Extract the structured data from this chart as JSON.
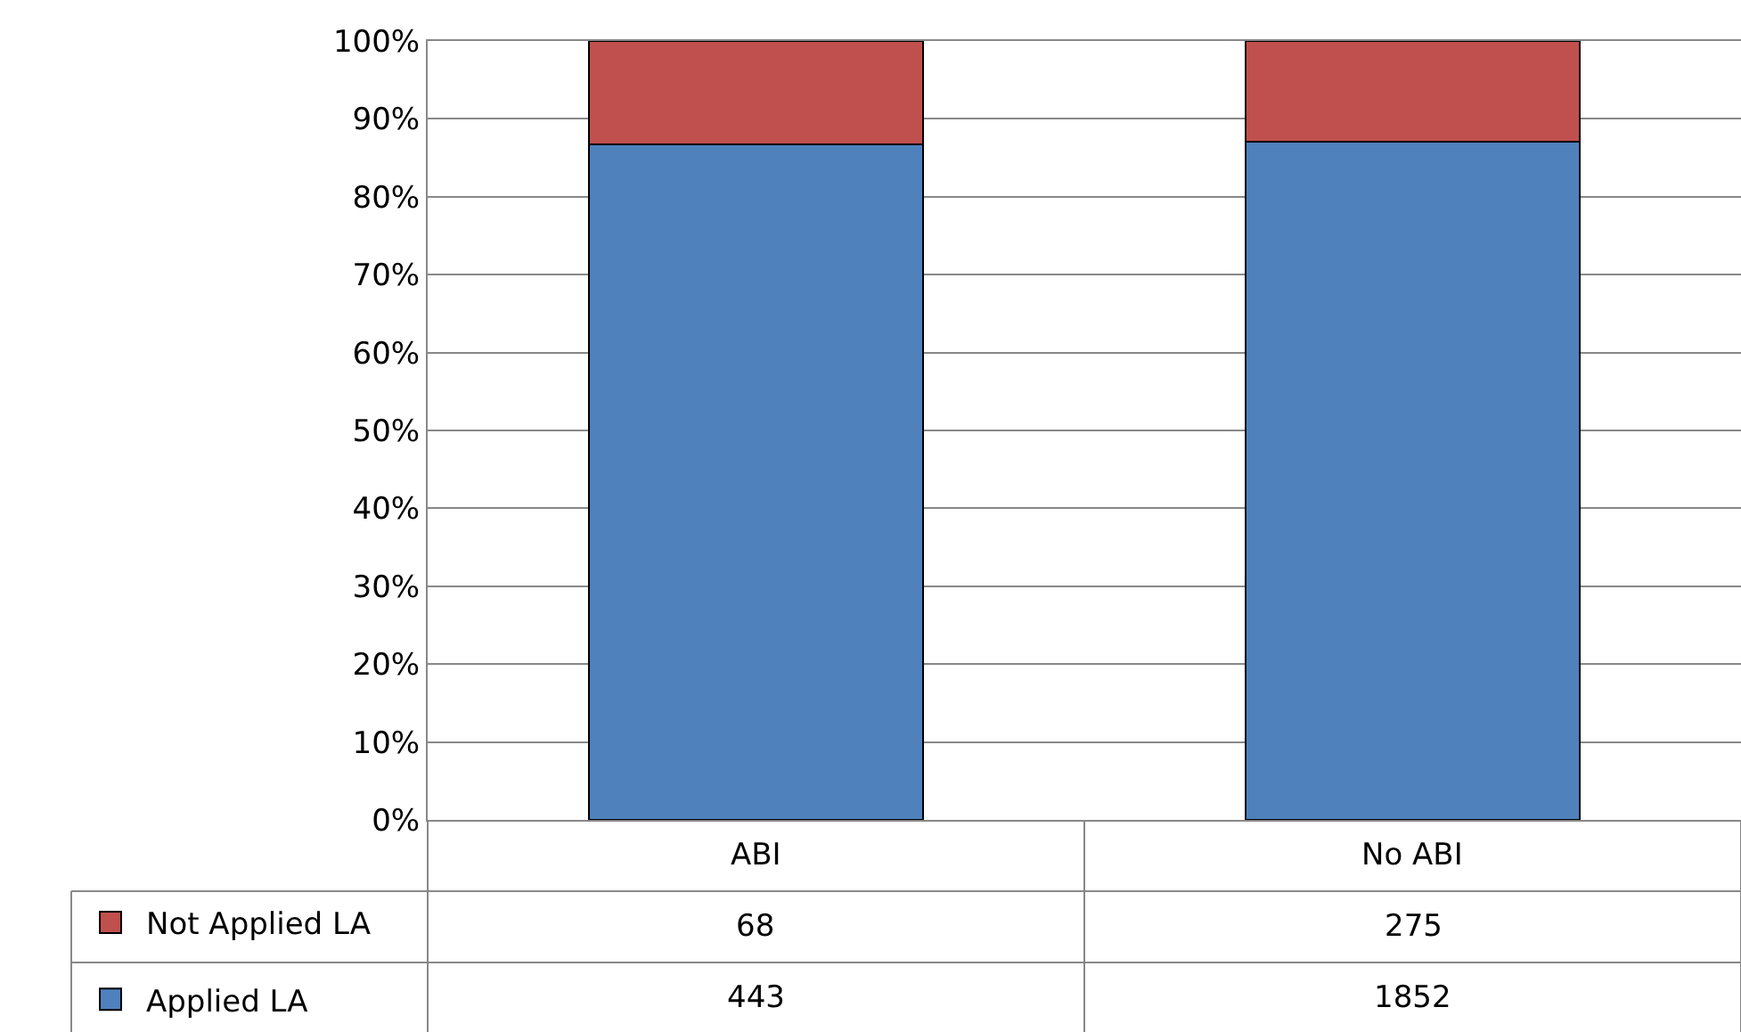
{
  "chart_data": {
    "type": "bar",
    "stacked": true,
    "annotations": [
      "68",
      "275",
      "443",
      "1852"
    ],
    "categories": [
      "ABI",
      "No ABI"
    ],
    "series": [
      {
        "name": "Applied LA",
        "color": "#4f81bd",
        "values": [
          86.7,
          87.1
        ]
      },
      {
        "name": "Not Applied LA",
        "color": "#c0504d",
        "values": [
          13.3,
          12.9
        ]
      }
    ],
    "ylim": [
      0,
      100
    ],
    "yticks": [
      {
        "value": 0,
        "label": "0%"
      },
      {
        "value": 10,
        "label": "10%"
      },
      {
        "value": 20,
        "label": "20%"
      },
      {
        "value": 30,
        "label": "30%"
      },
      {
        "value": 40,
        "label": "40%"
      },
      {
        "value": 50,
        "label": "50%"
      },
      {
        "value": 60,
        "label": "60%"
      },
      {
        "value": 70,
        "label": "70%"
      },
      {
        "value": 80,
        "label": "80%"
      },
      {
        "value": 90,
        "label": "90%"
      },
      {
        "value": 100,
        "label": "100%"
      }
    ],
    "grid": "y",
    "legend": "bottom"
  }
}
